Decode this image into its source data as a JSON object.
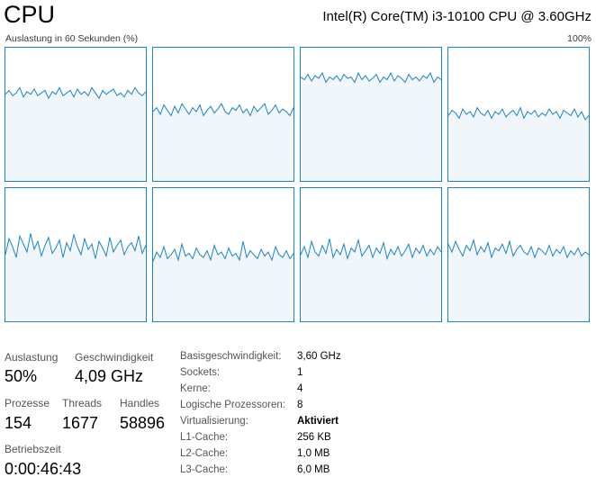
{
  "header": {
    "title": "CPU",
    "cpu_model": "Intel(R) Core(TM) i3-10100 CPU @ 3.60GHz",
    "graph_label": "Auslastung in 60 Sekunden (%)",
    "graph_max": "100%"
  },
  "colors": {
    "graph_line": "#1a84c6",
    "graph_fill": "#f1f6fb",
    "grid_line": "#d9eaf7"
  },
  "cores": [
    {
      "name": "core-0",
      "level_pct": [
        65,
        68,
        64,
        66,
        70,
        63,
        67,
        65,
        69,
        64,
        66,
        68,
        62,
        67,
        65,
        70,
        64,
        66,
        68,
        63,
        69,
        65,
        67,
        64,
        70,
        66,
        62,
        68,
        65,
        67,
        69,
        64,
        66,
        63,
        68,
        65,
        70,
        66,
        64,
        67
      ]
    },
    {
      "name": "core-1",
      "level_pct": [
        52,
        55,
        50,
        57,
        53,
        49,
        56,
        51,
        58,
        54,
        50,
        55,
        52,
        57,
        49,
        53,
        56,
        51,
        54,
        58,
        52,
        50,
        55,
        53,
        57,
        51,
        54,
        49,
        56,
        52,
        55,
        58,
        50,
        53,
        57,
        51,
        54,
        52,
        49,
        55
      ]
    },
    {
      "name": "core-2",
      "level_pct": [
        78,
        76,
        80,
        75,
        79,
        77,
        81,
        74,
        78,
        76,
        79,
        75,
        80,
        77,
        78,
        74,
        81,
        76,
        79,
        75,
        77,
        80,
        74,
        78,
        76,
        81,
        75,
        79,
        77,
        74,
        80,
        76,
        78,
        75,
        79,
        77,
        81,
        74,
        78,
        76
      ]
    },
    {
      "name": "core-3",
      "level_pct": [
        49,
        53,
        51,
        47,
        54,
        50,
        52,
        48,
        55,
        51,
        49,
        53,
        47,
        52,
        50,
        54,
        48,
        51,
        53,
        49,
        55,
        47,
        52,
        50,
        53,
        48,
        51,
        49,
        54,
        50,
        52,
        47,
        53,
        51,
        49,
        54,
        48,
        52,
        46,
        49
      ]
    },
    {
      "name": "core-4",
      "level_pct": [
        50,
        62,
        56,
        48,
        64,
        58,
        52,
        66,
        54,
        60,
        49,
        57,
        63,
        51,
        55,
        61,
        48,
        59,
        53,
        65,
        56,
        50,
        62,
        54,
        58,
        47,
        60,
        55,
        49,
        63,
        52,
        57,
        61,
        50,
        56,
        59,
        53,
        64,
        51,
        57
      ]
    },
    {
      "name": "core-5",
      "level_pct": [
        45,
        52,
        48,
        56,
        47,
        50,
        54,
        46,
        58,
        49,
        51,
        47,
        55,
        50,
        48,
        53,
        46,
        57,
        50,
        52,
        47,
        55,
        49,
        51,
        46,
        60,
        48,
        53,
        50,
        47,
        54,
        49,
        52,
        46,
        56,
        50,
        48,
        53,
        47,
        51
      ]
    },
    {
      "name": "core-6",
      "level_pct": [
        50,
        56,
        48,
        60,
        52,
        49,
        57,
        51,
        62,
        48,
        54,
        50,
        58,
        47,
        55,
        52,
        61,
        49,
        53,
        57,
        48,
        55,
        51,
        59,
        47,
        54,
        50,
        56,
        49,
        53,
        58,
        48,
        55,
        51,
        57,
        49,
        54,
        50,
        56,
        52
      ]
    },
    {
      "name": "core-7",
      "level_pct": [
        58,
        52,
        60,
        54,
        49,
        57,
        53,
        61,
        50,
        56,
        52,
        59,
        48,
        55,
        53,
        58,
        51,
        60,
        49,
        54,
        57,
        52,
        50,
        56,
        48,
        55,
        53,
        50,
        57,
        49,
        54,
        51,
        56,
        48,
        53,
        50,
        55,
        49,
        52,
        50
      ]
    }
  ],
  "stats": {
    "auslastung_label": "Auslastung",
    "auslastung_value": "50%",
    "geschwindigkeit_label": "Geschwindigkeit",
    "geschwindigkeit_value": "4,09 GHz",
    "prozesse_label": "Prozesse",
    "prozesse_value": "154",
    "threads_label": "Threads",
    "threads_value": "1677",
    "handles_label": "Handles",
    "handles_value": "58896",
    "betriebszeit_label": "Betriebszeit",
    "betriebszeit_value": "0:00:46:43"
  },
  "properties": [
    {
      "label": "Basisgeschwindigkeit:",
      "value": "3,60 GHz",
      "bold": false
    },
    {
      "label": "Sockets:",
      "value": "1",
      "bold": false
    },
    {
      "label": "Kerne:",
      "value": "4",
      "bold": false
    },
    {
      "label": "Logische Prozessoren:",
      "value": "8",
      "bold": false
    },
    {
      "label": "Virtualisierung:",
      "value": "Aktiviert",
      "bold": true
    },
    {
      "label": "L1-Cache:",
      "value": "256 KB",
      "bold": false
    },
    {
      "label": "L2-Cache:",
      "value": "1,0 MB",
      "bold": false
    },
    {
      "label": "L3-Cache:",
      "value": "6,0 MB",
      "bold": false
    }
  ]
}
